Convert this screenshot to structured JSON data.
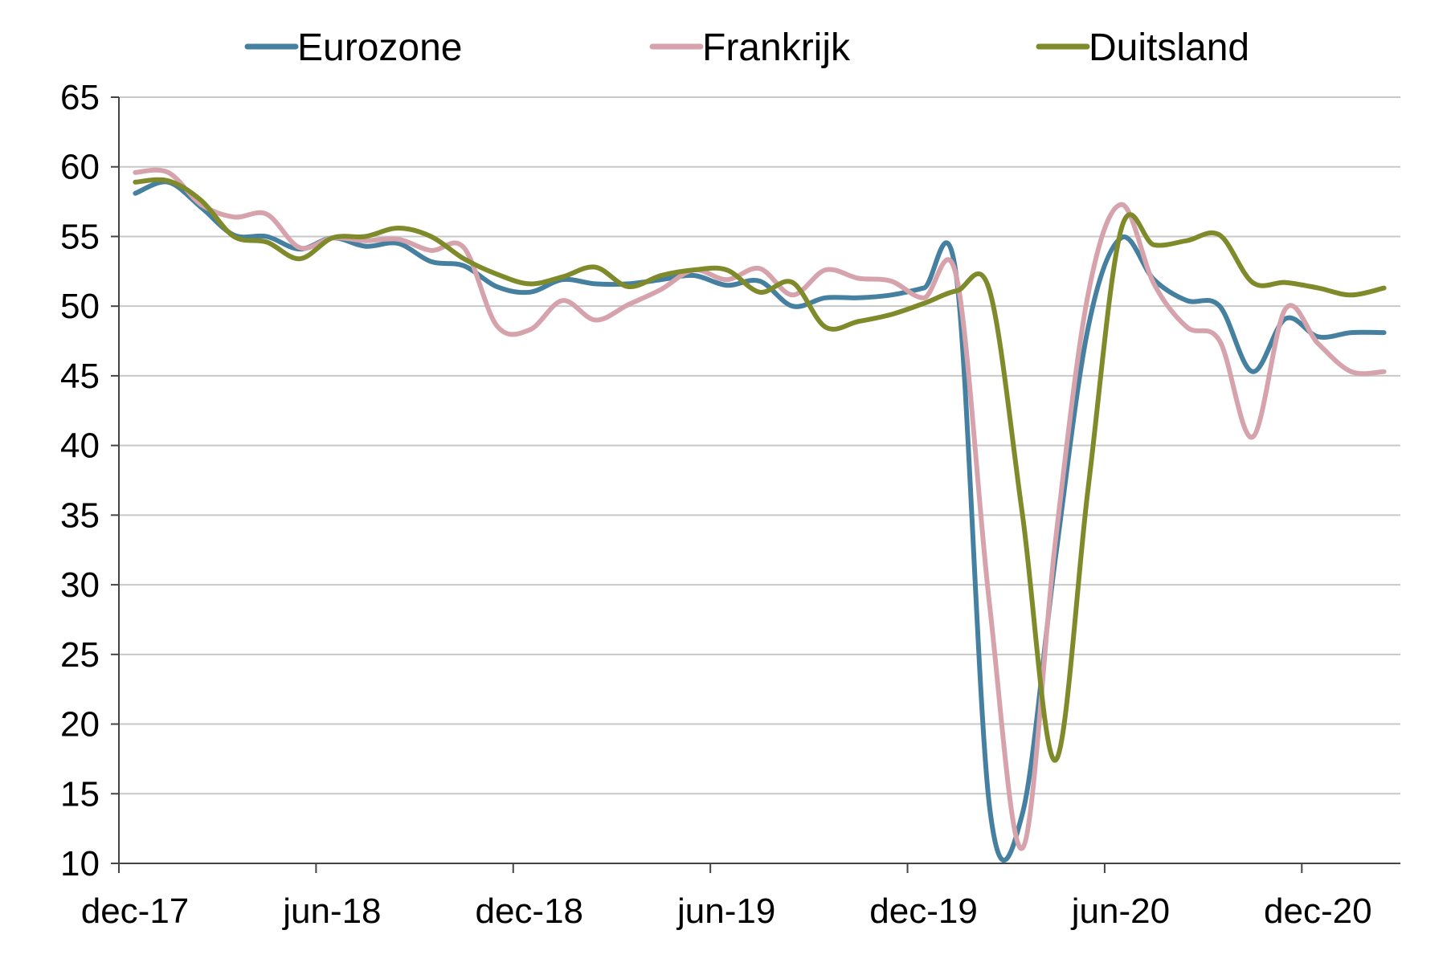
{
  "chart_data": {
    "type": "line",
    "title": "",
    "xlabel": "",
    "ylabel": "",
    "ylim": [
      10,
      65
    ],
    "yticks": [
      "10",
      "15",
      "20",
      "25",
      "30",
      "35",
      "40",
      "45",
      "50",
      "55",
      "60",
      "65"
    ],
    "x_range": [
      "2017-12",
      "2021-02"
    ],
    "xtick_labels": [
      "dec-17",
      "jun-18",
      "dec-18",
      "jun-19",
      "dec-19",
      "jun-20",
      "dec-20"
    ],
    "xticks": [
      "2017-12",
      "2018-06",
      "2018-12",
      "2019-06",
      "2019-12",
      "2020-06",
      "2020-12"
    ],
    "x": [
      "2017-12",
      "2018-01",
      "2018-02",
      "2018-03",
      "2018-04",
      "2018-05",
      "2018-06",
      "2018-07",
      "2018-08",
      "2018-09",
      "2018-10",
      "2018-11",
      "2018-12",
      "2019-01",
      "2019-02",
      "2019-03",
      "2019-04",
      "2019-05",
      "2019-06",
      "2019-07",
      "2019-08",
      "2019-09",
      "2019-10",
      "2019-11",
      "2019-12",
      "2020-01",
      "2020-02",
      "2020-03",
      "2020-04",
      "2020-05",
      "2020-06",
      "2020-07",
      "2020-08",
      "2020-09",
      "2020-10",
      "2020-11",
      "2020-12",
      "2021-01",
      "2021-02"
    ],
    "grid": true,
    "legend_position": "top",
    "series": [
      {
        "name": "Eurozone",
        "color": "#4680a0",
        "values": [
          58.1,
          58.9,
          57.1,
          55.1,
          55.0,
          54.1,
          54.9,
          54.3,
          54.5,
          53.2,
          52.9,
          51.4,
          51.0,
          51.9,
          51.6,
          51.6,
          51.9,
          52.2,
          51.5,
          51.8,
          50.0,
          50.6,
          50.6,
          50.8,
          51.3,
          51.9,
          14.0,
          13.6,
          31.9,
          48.5,
          54.9,
          51.9,
          50.4,
          50.0,
          45.3,
          49.1,
          47.8,
          48.1,
          48.1
        ]
      },
      {
        "name": "Frankrijk",
        "color": "#d6a3ac",
        "values": [
          59.6,
          59.6,
          57.3,
          56.4,
          56.6,
          54.2,
          54.9,
          54.7,
          54.8,
          54.0,
          54.2,
          48.6,
          48.3,
          50.4,
          49.0,
          50.1,
          51.2,
          52.6,
          51.9,
          52.7,
          50.8,
          52.6,
          52.0,
          51.8,
          50.6,
          52.0,
          28.5,
          11.1,
          33.1,
          50.9,
          57.3,
          51.6,
          48.5,
          47.5,
          40.6,
          49.8,
          47.3,
          45.3,
          45.3
        ]
      },
      {
        "name": "Duitsland",
        "color": "#7f8b2a",
        "values": [
          58.9,
          59.0,
          57.6,
          55.0,
          54.6,
          53.4,
          54.9,
          55.0,
          55.6,
          55.0,
          53.4,
          52.3,
          51.6,
          52.1,
          52.8,
          51.4,
          52.2,
          52.6,
          52.6,
          51.0,
          51.7,
          48.5,
          48.9,
          49.4,
          50.2,
          51.1,
          51.1,
          35.0,
          17.4,
          37.0,
          55.5,
          54.4,
          54.7,
          55.1,
          51.7,
          51.7,
          51.3,
          50.8,
          51.3
        ]
      }
    ]
  }
}
